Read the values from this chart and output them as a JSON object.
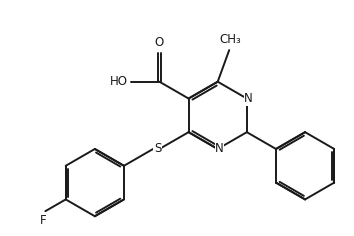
{
  "bg_color": "#ffffff",
  "line_color": "#1a1a1a",
  "line_width": 1.4,
  "font_size": 8.5,
  "figsize": [
    3.54,
    2.36
  ],
  "dpi": 100,
  "xlim": [
    0,
    10
  ],
  "ylim": [
    0,
    6.65
  ]
}
